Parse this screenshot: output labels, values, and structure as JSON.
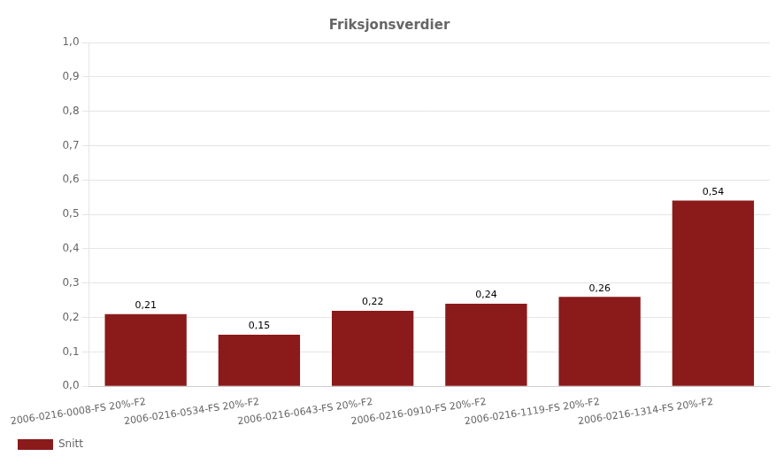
{
  "chart_data": {
    "type": "bar",
    "title": "Friksjonsverdier",
    "categories": [
      "2006-0216-0008-FS 20%-F2",
      "2006-0216-0534-FS 20%-F2",
      "2006-0216-0643-FS 20%-F2",
      "2006-0216-0910-FS 20%-F2",
      "2006-0216-1119-FS 20%-F2",
      "2006-0216-1314-FS 20%-F2"
    ],
    "series": [
      {
        "name": "Snitt",
        "color": "#8B1A1A",
        "values": [
          0.21,
          0.15,
          0.22,
          0.24,
          0.26,
          0.54
        ],
        "value_labels": [
          "0,21",
          "0,15",
          "0,22",
          "0,24",
          "0,26",
          "0,54"
        ]
      }
    ],
    "ylim": [
      0.0,
      1.0
    ],
    "yticks": [
      {
        "value": 0.0,
        "label": "0,0"
      },
      {
        "value": 0.1,
        "label": "0,1"
      },
      {
        "value": 0.2,
        "label": "0,2"
      },
      {
        "value": 0.3,
        "label": "0,3"
      },
      {
        "value": 0.4,
        "label": "0,4"
      },
      {
        "value": 0.5,
        "label": "0,5"
      },
      {
        "value": 0.6,
        "label": "0,6"
      },
      {
        "value": 0.7,
        "label": "0,7"
      },
      {
        "value": 0.8,
        "label": "0,8"
      },
      {
        "value": 0.9,
        "label": "0,9"
      },
      {
        "value": 1.0,
        "label": "1,0"
      }
    ],
    "grid": true,
    "legend": "lower left",
    "data_labels": true
  }
}
